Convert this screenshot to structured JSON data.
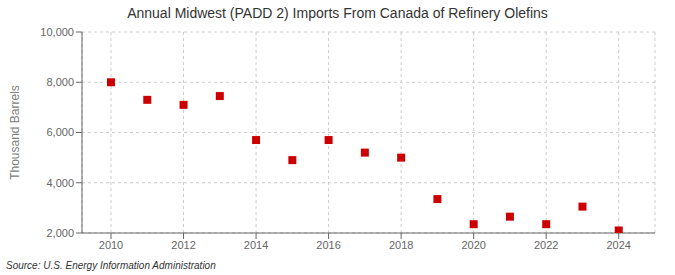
{
  "chart_data": {
    "type": "scatter",
    "title": "Annual Midwest (PADD 2) Imports From Canada of Refinery Olefins",
    "ylabel": "Thousand Barrels",
    "annotations": [
      "Source: U.S. Energy Information Administration"
    ],
    "x": [
      2010,
      2011,
      2012,
      2013,
      2014,
      2015,
      2016,
      2017,
      2018,
      2019,
      2020,
      2021,
      2022,
      2023,
      2024
    ],
    "values": [
      8000,
      7300,
      7100,
      7450,
      5700,
      4900,
      5700,
      5200,
      5000,
      3350,
      2350,
      2650,
      2350,
      3050,
      2100
    ],
    "color": "#cc0000",
    "marker": "square",
    "xlim": [
      2009.2,
      2025.0
    ],
    "ylim": [
      2000,
      10000
    ],
    "xticks": [
      2010,
      2012,
      2014,
      2016,
      2018,
      2020,
      2022,
      2024
    ],
    "yticks": [
      {
        "value": 2000,
        "label": "2,000"
      },
      {
        "value": 4000,
        "label": "4,000"
      },
      {
        "value": 6000,
        "label": "6,000"
      },
      {
        "value": 8000,
        "label": "8,000"
      },
      {
        "value": 10000,
        "label": "10,000"
      }
    ],
    "grid": true
  }
}
